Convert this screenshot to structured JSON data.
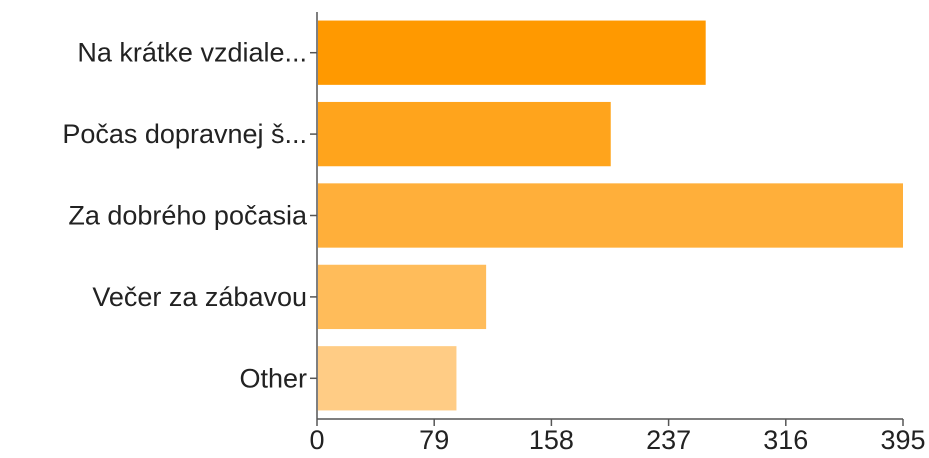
{
  "chart_data": {
    "type": "bar",
    "orientation": "horizontal",
    "categories": [
      "Na krátke vzdiale...",
      "Počas dopravnej š...",
      "Za dobrého počasia",
      "Večer za zábavou",
      "Other"
    ],
    "values": [
      262,
      198,
      395,
      114,
      94
    ],
    "colors": [
      "#ff9900",
      "#ffa41c",
      "#ffaf3a",
      "#ffbc5a",
      "#ffcc85"
    ],
    "xlim": [
      0,
      395
    ],
    "xticks": [
      "0",
      "79",
      "158",
      "237",
      "316",
      "395"
    ],
    "grid": false,
    "legend": "none"
  }
}
